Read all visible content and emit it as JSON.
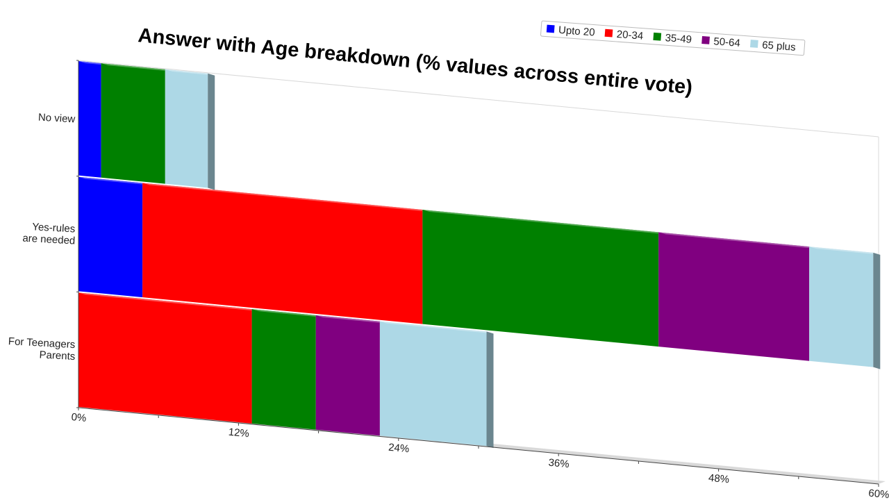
{
  "chart_data": {
    "type": "bar",
    "orientation": "horizontal",
    "stacked": true,
    "three_d": true,
    "title": "Answer with Age breakdown (% values across entire vote)",
    "xlabel": "",
    "ylabel": "",
    "xlim": [
      0,
      60
    ],
    "x_ticks": [
      "0%",
      "12%",
      "24%",
      "36%",
      "48%",
      "60%"
    ],
    "categories": [
      "No view",
      "Yes-rules are needed",
      "For Teenagers Parents"
    ],
    "category_labels": [
      [
        "No view"
      ],
      [
        "Yes-rules",
        "are needed"
      ],
      [
        "For Teenagers",
        "Parents"
      ]
    ],
    "series": [
      {
        "name": "Upto 20",
        "color": "#0000ff",
        "values": [
          1.7,
          4.8,
          0
        ]
      },
      {
        "name": "20-34",
        "color": "#ff0000",
        "values": [
          0,
          21.0,
          13.0
        ]
      },
      {
        "name": "35-49",
        "color": "#008000",
        "values": [
          4.8,
          17.7,
          4.8
        ]
      },
      {
        "name": "50-64",
        "color": "#800080",
        "values": [
          0,
          11.3,
          4.8
        ]
      },
      {
        "name": "65 plus",
        "color": "#add8e6",
        "values": [
          3.2,
          4.8,
          8.0
        ]
      }
    ],
    "legend": {
      "position": "top-right"
    },
    "grid": false
  }
}
